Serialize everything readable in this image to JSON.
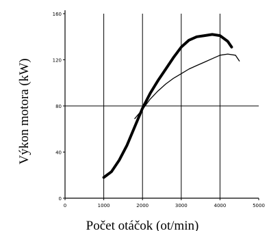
{
  "chart_data": {
    "type": "line",
    "title": "",
    "xlabel": "Počet otáčok (ot/min)",
    "ylabel": "Výkon motora (kW)",
    "xlim": [
      0,
      5000
    ],
    "ylim": [
      0,
      160
    ],
    "x_ticks": [
      0,
      1000,
      2000,
      3000,
      4000,
      5000
    ],
    "x_tick_labels": [
      "0",
      "1000",
      "2000",
      "3000",
      "4000",
      "5000"
    ],
    "y_ticks": [
      0,
      40,
      80,
      120,
      160
    ],
    "y_tick_labels": [
      "0",
      "40",
      "80",
      "120",
      "160"
    ],
    "grid_x": [
      1000,
      2000,
      3000,
      4000
    ],
    "grid_y": [
      80
    ],
    "legend": "none",
    "series": [
      {
        "style": "thick",
        "color": "#000000",
        "x": [
          1000,
          1200,
          1400,
          1600,
          1800,
          2000,
          2200,
          2400,
          2600,
          2800,
          3000,
          3200,
          3400,
          3600,
          3800,
          4000,
          4200,
          4300
        ],
        "y": [
          18,
          23,
          33,
          46,
          62,
          78,
          91,
          102,
          112,
          122,
          131,
          137,
          140,
          141,
          142,
          141,
          136,
          131
        ]
      },
      {
        "style": "thin",
        "color": "#000000",
        "x": [
          1800,
          2000,
          2200,
          2400,
          2600,
          2800,
          3000,
          3200,
          3400,
          3600,
          3800,
          4000,
          4200,
          4400,
          4500
        ],
        "y": [
          69,
          77,
          86,
          93,
          99,
          104,
          108,
          112,
          115,
          118,
          121,
          124,
          125,
          124,
          119
        ]
      }
    ]
  }
}
